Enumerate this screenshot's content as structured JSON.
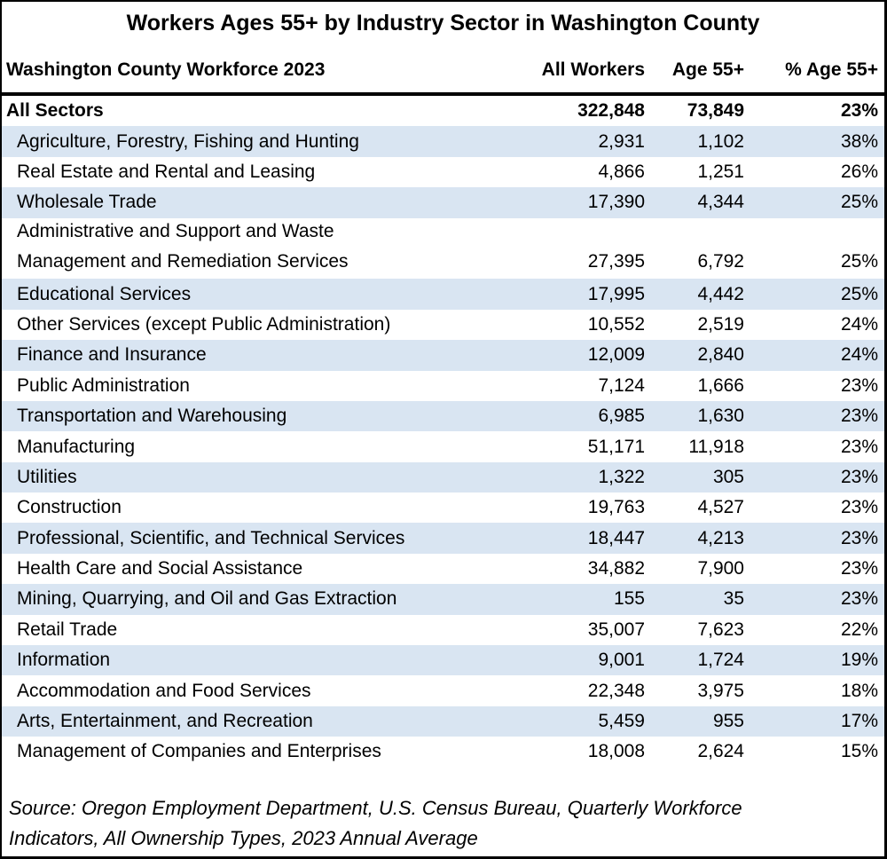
{
  "title": "Workers Ages 55+ by Industry Sector in Washington County",
  "table": {
    "header": {
      "label": "Washington County Workforce 2023",
      "all_workers": "All Workers",
      "age_55": "Age 55+",
      "pct_age_55": "% Age 55+"
    },
    "rows": [
      {
        "sector": "All Sectors",
        "all_workers": "322,848",
        "age_55": "73,849",
        "pct": "23%"
      },
      {
        "sector": "Agriculture, Forestry, Fishing and Hunting",
        "all_workers": "2,931",
        "age_55": "1,102",
        "pct": "38%"
      },
      {
        "sector": "Real Estate and Rental and Leasing",
        "all_workers": "4,866",
        "age_55": "1,251",
        "pct": "26%"
      },
      {
        "sector": "Wholesale Trade",
        "all_workers": "17,390",
        "age_55": "4,344",
        "pct": "25%"
      },
      {
        "sector": "Administrative and Support and Waste\nManagement and Remediation Services",
        "all_workers": "27,395",
        "age_55": "6,792",
        "pct": "25%"
      },
      {
        "sector": "Educational Services",
        "all_workers": "17,995",
        "age_55": "4,442",
        "pct": "25%"
      },
      {
        "sector": "Other Services (except Public Administration)",
        "all_workers": "10,552",
        "age_55": "2,519",
        "pct": "24%"
      },
      {
        "sector": "Finance and Insurance",
        "all_workers": "12,009",
        "age_55": "2,840",
        "pct": "24%"
      },
      {
        "sector": "Public Administration",
        "all_workers": "7,124",
        "age_55": "1,666",
        "pct": "23%"
      },
      {
        "sector": "Transportation and Warehousing",
        "all_workers": "6,985",
        "age_55": "1,630",
        "pct": "23%"
      },
      {
        "sector": "Manufacturing",
        "all_workers": "51,171",
        "age_55": "11,918",
        "pct": "23%"
      },
      {
        "sector": "Utilities",
        "all_workers": "1,322",
        "age_55": "305",
        "pct": "23%"
      },
      {
        "sector": "Construction",
        "all_workers": "19,763",
        "age_55": "4,527",
        "pct": "23%"
      },
      {
        "sector": "Professional, Scientific, and Technical Services",
        "all_workers": "18,447",
        "age_55": "4,213",
        "pct": "23%"
      },
      {
        "sector": "Health Care and Social Assistance",
        "all_workers": "34,882",
        "age_55": "7,900",
        "pct": "23%"
      },
      {
        "sector": "Mining, Quarrying, and Oil and Gas Extraction",
        "all_workers": "155",
        "age_55": "35",
        "pct": "23%"
      },
      {
        "sector": "Retail Trade",
        "all_workers": "35,007",
        "age_55": "7,623",
        "pct": "22%"
      },
      {
        "sector": "Information",
        "all_workers": "9,001",
        "age_55": "1,724",
        "pct": "19%"
      },
      {
        "sector": "Accommodation and Food Services",
        "all_workers": "22,348",
        "age_55": "3,975",
        "pct": "18%"
      },
      {
        "sector": "Arts, Entertainment, and Recreation",
        "all_workers": "5,459",
        "age_55": "955",
        "pct": "17%"
      },
      {
        "sector": "Management of Companies and Enterprises",
        "all_workers": "18,008",
        "age_55": "2,624",
        "pct": "15%"
      }
    ]
  },
  "source": "Source: Oregon Employment Department, U.S. Census Bureau, Quarterly Workforce\nIndicators, All Ownership Types, 2023 Annual Average",
  "colors": {
    "stripe": "#d9e5f2",
    "border": "#000000"
  },
  "chart_data": {
    "type": "table",
    "title": "Workers Ages 55+ by Industry Sector in Washington County",
    "columns": [
      "Washington County Workforce 2023",
      "All Workers",
      "Age 55+",
      "% Age 55+"
    ],
    "rows": [
      [
        "All Sectors",
        322848,
        73849,
        "23%"
      ],
      [
        "Agriculture, Forestry, Fishing and Hunting",
        2931,
        1102,
        "38%"
      ],
      [
        "Real Estate and Rental and Leasing",
        4866,
        1251,
        "26%"
      ],
      [
        "Wholesale Trade",
        17390,
        4344,
        "25%"
      ],
      [
        "Administrative and Support and Waste Management and Remediation Services",
        27395,
        6792,
        "25%"
      ],
      [
        "Educational Services",
        17995,
        4442,
        "25%"
      ],
      [
        "Other Services (except Public Administration)",
        10552,
        2519,
        "24%"
      ],
      [
        "Finance and Insurance",
        12009,
        2840,
        "24%"
      ],
      [
        "Public Administration",
        7124,
        1666,
        "23%"
      ],
      [
        "Transportation and Warehousing",
        6985,
        1630,
        "23%"
      ],
      [
        "Manufacturing",
        51171,
        11918,
        "23%"
      ],
      [
        "Utilities",
        1322,
        305,
        "23%"
      ],
      [
        "Construction",
        19763,
        4527,
        "23%"
      ],
      [
        "Professional, Scientific, and Technical Services",
        18447,
        4213,
        "23%"
      ],
      [
        "Health Care and Social Assistance",
        34882,
        7900,
        "23%"
      ],
      [
        "Mining, Quarrying, and Oil and Gas Extraction",
        155,
        35,
        "23%"
      ],
      [
        "Retail Trade",
        35007,
        7623,
        "22%"
      ],
      [
        "Information",
        9001,
        1724,
        "19%"
      ],
      [
        "Accommodation and Food Services",
        22348,
        3975,
        "18%"
      ],
      [
        "Arts, Entertainment, and Recreation",
        5459,
        955,
        "17%"
      ],
      [
        "Management of Companies and Enterprises",
        18008,
        2624,
        "15%"
      ]
    ],
    "layout": "striped rows (pale blue alternating), thick rule under header, bold total row, italic source note"
  }
}
